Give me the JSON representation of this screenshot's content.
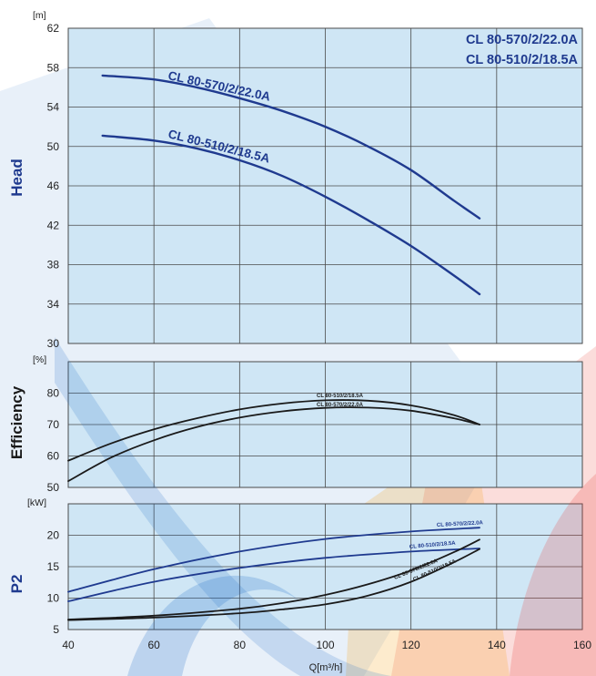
{
  "header": {
    "title_line1": "CL 80-570/2/22.0A",
    "title_line2": "CL 80-510/2/18.5A"
  },
  "colors": {
    "plot_bg": "#cfe6f5",
    "grid": "#4a4a4a",
    "blue_curve": "#1f3a8f",
    "black_curve": "#1a1a1a",
    "axis_title": "#1f3a8f",
    "deco_blue": "#1f6fc8",
    "deco_red": "#e8413a",
    "deco_orange": "#f7a21b"
  },
  "chart_data": [
    {
      "type": "line",
      "panel": "head",
      "ylabel": "Head",
      "yunit": "[m]",
      "ylim": [
        30,
        62
      ],
      "yticks": [
        30,
        34,
        38,
        42,
        46,
        50,
        54,
        58,
        62
      ],
      "xlim": [
        40,
        160
      ],
      "grid": true,
      "series": [
        {
          "name": "CL 80-570/2/22.0A",
          "color": "#1f3a8f",
          "x": [
            48,
            60,
            70,
            80,
            90,
            100,
            110,
            120,
            130,
            136
          ],
          "y": [
            57.2,
            56.8,
            56.0,
            54.9,
            53.6,
            52.0,
            50.0,
            47.6,
            44.5,
            42.7
          ]
        },
        {
          "name": "CL 80-510/2/18.5A",
          "color": "#1f3a8f",
          "x": [
            48,
            60,
            70,
            80,
            90,
            100,
            110,
            120,
            130,
            136
          ],
          "y": [
            51.1,
            50.6,
            49.8,
            48.6,
            47.0,
            44.9,
            42.5,
            39.9,
            36.9,
            35.0
          ]
        }
      ]
    },
    {
      "type": "line",
      "panel": "efficiency",
      "ylabel": "Efficiency",
      "yunit": "[%]",
      "ylim": [
        50,
        90
      ],
      "yticks": [
        50,
        60,
        70,
        80
      ],
      "xlim": [
        40,
        160
      ],
      "grid": true,
      "series": [
        {
          "name": "CL 80-510/2/18.5A",
          "color": "#1a1a1a",
          "x": [
            40,
            50,
            60,
            70,
            80,
            90,
            100,
            110,
            120,
            130,
            136
          ],
          "y": [
            58.5,
            64.0,
            68.5,
            72.0,
            74.8,
            76.7,
            77.7,
            77.6,
            76.1,
            73.0,
            70.0
          ]
        },
        {
          "name": "CL 80-570/2/22.0A",
          "color": "#1a1a1a",
          "x": [
            40,
            50,
            60,
            70,
            80,
            90,
            100,
            110,
            120,
            130,
            136
          ],
          "y": [
            52.0,
            59.5,
            65.0,
            69.2,
            72.2,
            74.2,
            75.3,
            75.4,
            74.4,
            72.0,
            70.0
          ]
        }
      ]
    },
    {
      "type": "line",
      "panel": "power",
      "ylabel": "P2",
      "yunit": "[kW]",
      "ylim": [
        5,
        25
      ],
      "yticks": [
        5,
        10,
        15,
        20
      ],
      "xlim": [
        40,
        160
      ],
      "xticks": [
        40,
        60,
        80,
        100,
        120,
        140,
        160
      ],
      "xlabel": "Q[m³/h]",
      "grid": true,
      "series": [
        {
          "name": "CL 80-570/2/22.0A",
          "color": "#1f3a8f",
          "x": [
            40,
            60,
            80,
            100,
            120,
            136
          ],
          "y": [
            11.0,
            14.6,
            17.4,
            19.4,
            20.6,
            21.2
          ]
        },
        {
          "name": "CL 80-510/2/18.5A",
          "color": "#1f3a8f",
          "x": [
            40,
            60,
            80,
            100,
            120,
            136
          ],
          "y": [
            9.5,
            12.6,
            14.8,
            16.4,
            17.4,
            17.9
          ]
        },
        {
          "name": "CL 80-570/2/22.0A",
          "color": "#1a1a1a",
          "x": [
            40,
            60,
            80,
            90,
            100,
            110,
            120,
            130,
            136
          ],
          "y": [
            6.6,
            7.2,
            8.3,
            9.2,
            10.5,
            12.2,
            14.4,
            17.3,
            19.3
          ]
        },
        {
          "name": "CL 80-510/2/18.5A",
          "color": "#1a1a1a",
          "x": [
            40,
            60,
            80,
            90,
            100,
            110,
            120,
            130,
            136
          ],
          "y": [
            6.5,
            6.9,
            7.6,
            8.2,
            9.0,
            10.4,
            12.6,
            15.7,
            17.8
          ]
        }
      ]
    }
  ]
}
